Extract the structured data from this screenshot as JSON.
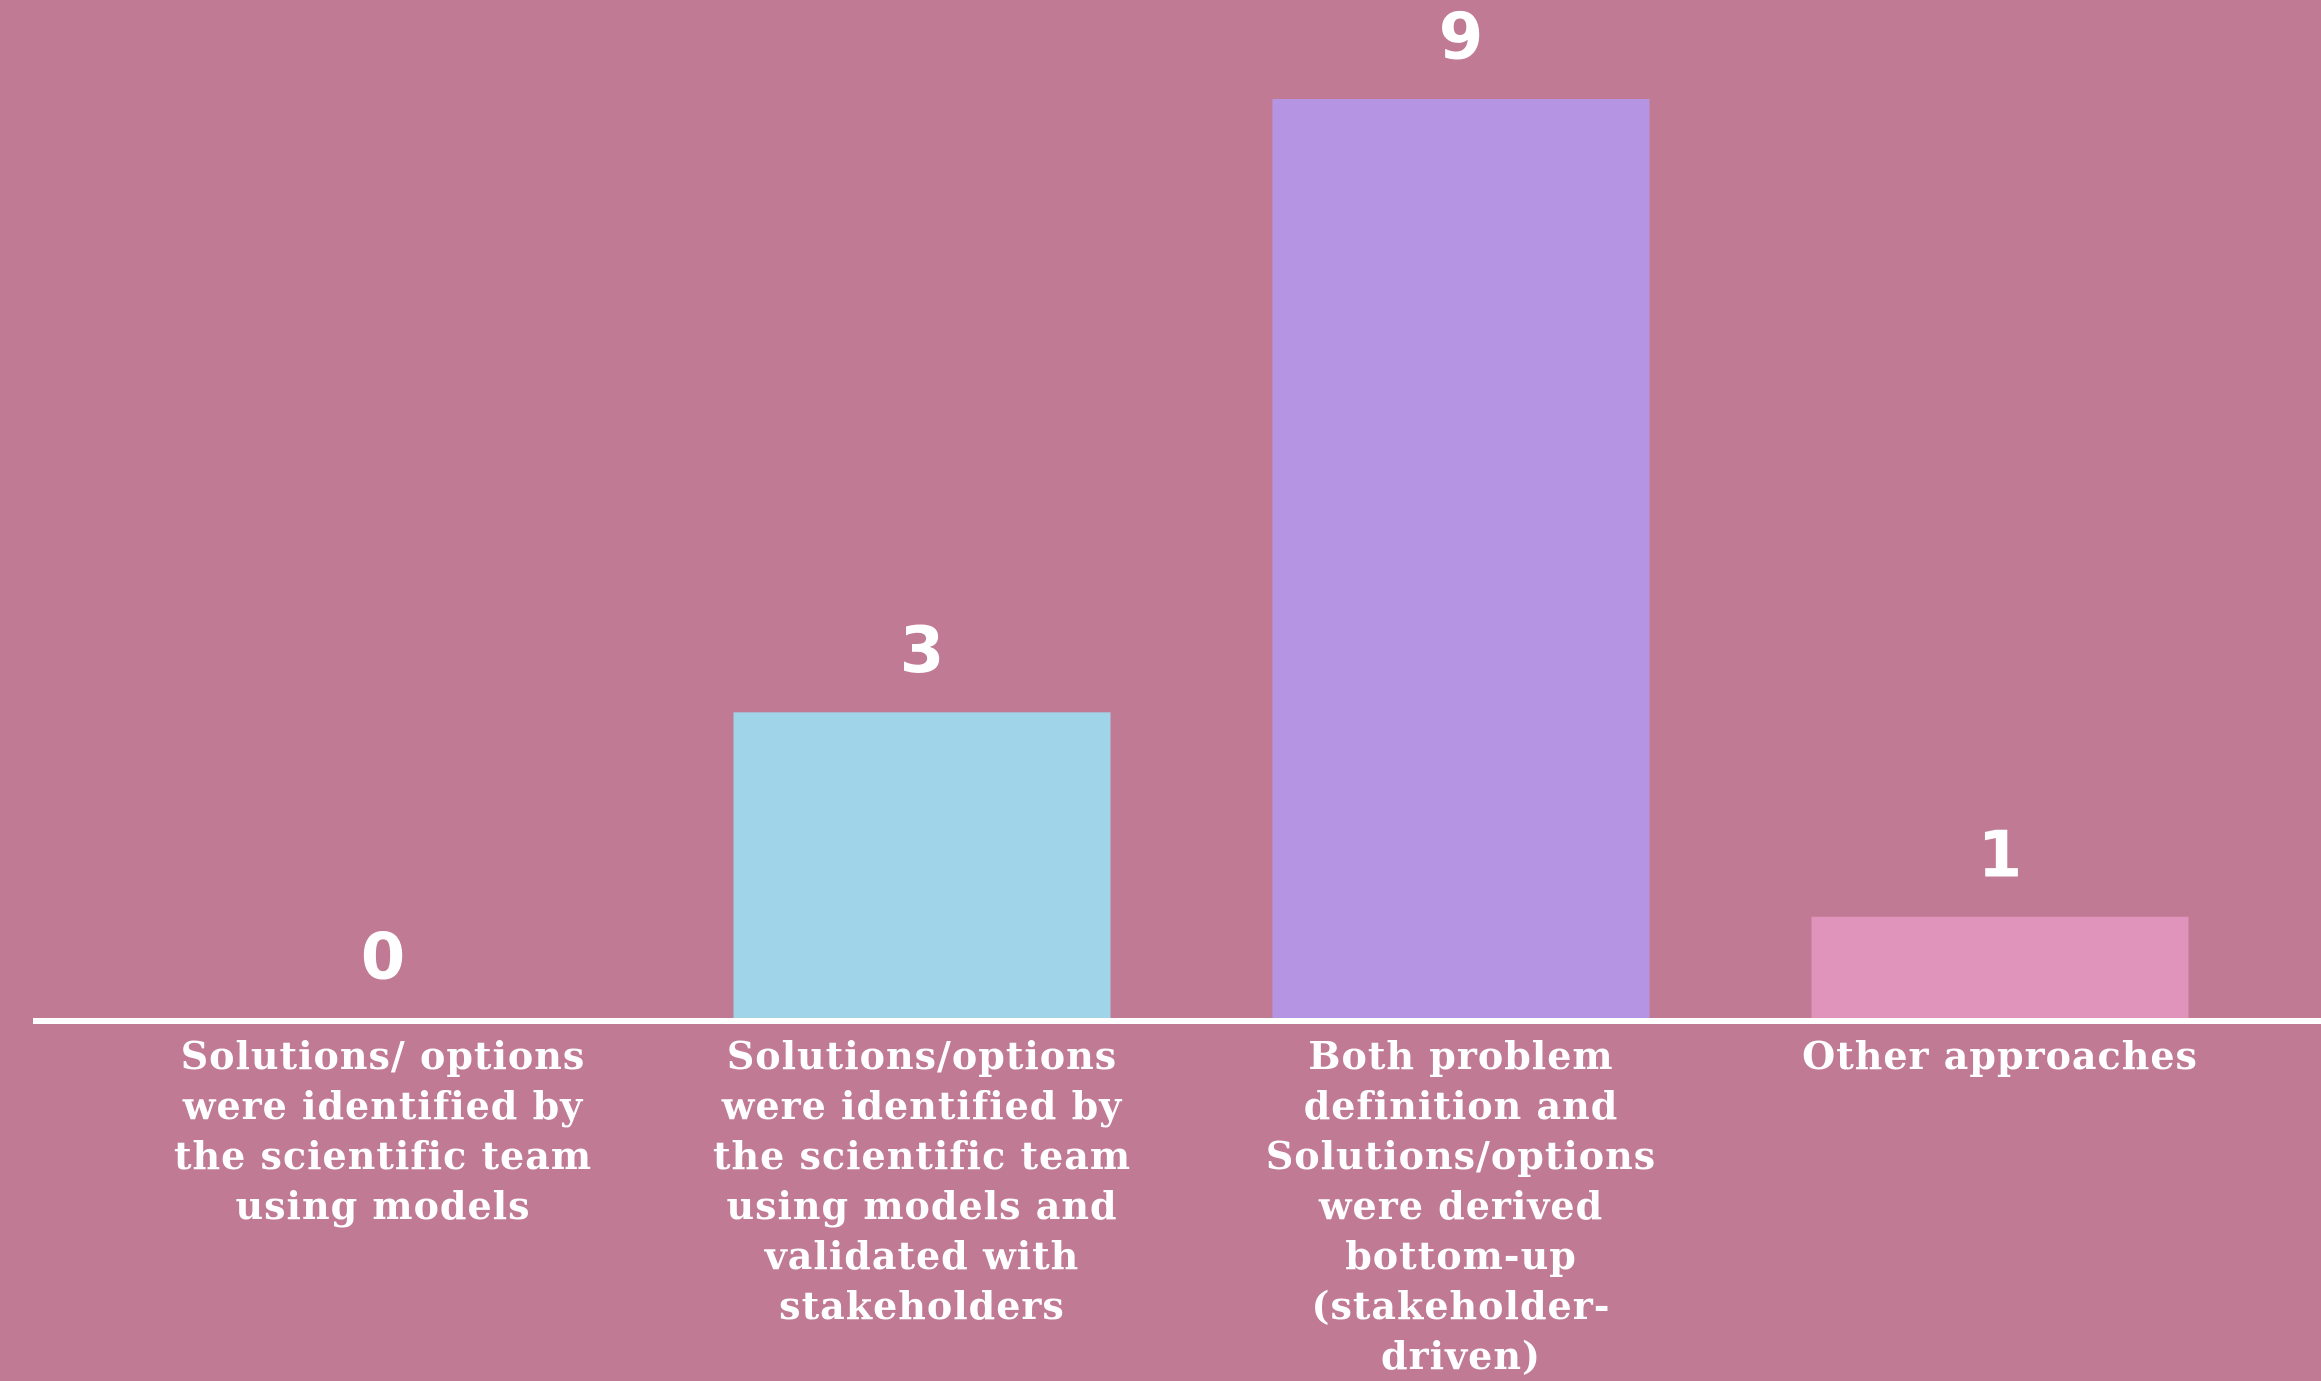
{
  "chart_data": {
    "type": "bar",
    "categories": [
      "Solutions/ options were identified by the scientific team using models",
      "Solutions/options were identified by the scientific team using models and validated with stakeholders",
      "Both problem definition and Solutions/options were derived bottom-up (stakeholder-driven)",
      "Other approaches"
    ],
    "values": [
      0,
      3,
      9,
      1
    ],
    "colors": [
      null,
      "#a0d4e8",
      "#b595e3",
      "#e093bb"
    ]
  }
}
